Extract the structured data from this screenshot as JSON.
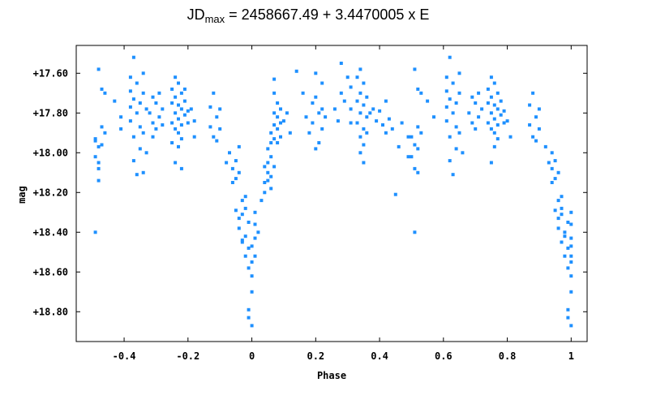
{
  "chart_data": {
    "type": "scatter",
    "title": {
      "prefix": "JD",
      "subscript": "max",
      "suffix": " = 2458667.49 + 3.4470005 x E"
    },
    "xlabel": "Phase",
    "ylabel": "mag",
    "xlim": [
      -0.55,
      1.05
    ],
    "ylim": [
      18.95,
      17.46
    ],
    "y_inverted": true,
    "x_ticks": [
      -0.4,
      -0.2,
      0,
      0.2,
      0.4,
      0.6,
      0.8,
      1
    ],
    "x_tick_labels": [
      "-0.4",
      "-0.2",
      "0",
      "0.2",
      "0.4",
      "0.6",
      "0.8",
      "1"
    ],
    "y_ticks": [
      17.6,
      17.8,
      18.0,
      18.2,
      18.4,
      18.6,
      18.8
    ],
    "y_tick_labels": [
      "+17.60",
      "+17.80",
      "+18.00",
      "+18.20",
      "+18.40",
      "+18.60",
      "+18.80"
    ],
    "grid": false,
    "marker_color": "#1e90ff",
    "series": [
      {
        "points": [
          [
            -0.49,
            17.93
          ],
          [
            -0.49,
            18.02
          ],
          [
            -0.48,
            17.97
          ],
          [
            -0.48,
            18.08
          ],
          [
            -0.47,
            17.87
          ],
          [
            -0.47,
            17.96
          ],
          [
            -0.47,
            17.68
          ],
          [
            -0.48,
            17.58
          ],
          [
            -0.49,
            18.4
          ],
          [
            -0.48,
            18.14
          ],
          [
            -0.46,
            17.9
          ],
          [
            -0.46,
            17.7
          ],
          [
            -0.48,
            18.05
          ],
          [
            -0.49,
            17.94
          ],
          [
            -0.43,
            17.74
          ],
          [
            -0.41,
            17.82
          ],
          [
            -0.41,
            17.88
          ],
          [
            -0.38,
            17.69
          ],
          [
            -0.38,
            17.77
          ],
          [
            -0.38,
            17.84
          ],
          [
            -0.38,
            17.62
          ],
          [
            -0.37,
            17.52
          ],
          [
            -0.37,
            17.73
          ],
          [
            -0.37,
            17.92
          ],
          [
            -0.37,
            18.04
          ],
          [
            -0.36,
            18.11
          ],
          [
            -0.36,
            17.8
          ],
          [
            -0.36,
            17.65
          ],
          [
            -0.35,
            17.75
          ],
          [
            -0.35,
            17.87
          ],
          [
            -0.35,
            17.98
          ],
          [
            -0.34,
            17.6
          ],
          [
            -0.34,
            17.7
          ],
          [
            -0.34,
            17.9
          ],
          [
            -0.34,
            18.1
          ],
          [
            -0.33,
            18.0
          ],
          [
            -0.33,
            17.78
          ],
          [
            -0.32,
            17.8
          ],
          [
            -0.31,
            17.72
          ],
          [
            -0.31,
            17.85
          ],
          [
            -0.3,
            17.75
          ],
          [
            -0.3,
            17.88
          ],
          [
            -0.29,
            17.82
          ],
          [
            -0.29,
            17.7
          ],
          [
            -0.28,
            17.78
          ],
          [
            -0.28,
            17.86
          ],
          [
            -0.31,
            17.92
          ],
          [
            -0.25,
            17.68
          ],
          [
            -0.25,
            17.75
          ],
          [
            -0.25,
            17.85
          ],
          [
            -0.25,
            17.95
          ],
          [
            -0.24,
            17.62
          ],
          [
            -0.24,
            17.72
          ],
          [
            -0.24,
            17.8
          ],
          [
            -0.24,
            17.88
          ],
          [
            -0.24,
            18.05
          ],
          [
            -0.23,
            17.65
          ],
          [
            -0.23,
            17.76
          ],
          [
            -0.23,
            17.83
          ],
          [
            -0.23,
            17.9
          ],
          [
            -0.23,
            17.97
          ],
          [
            -0.22,
            17.7
          ],
          [
            -0.22,
            17.78
          ],
          [
            -0.22,
            17.86
          ],
          [
            -0.22,
            17.93
          ],
          [
            -0.22,
            18.08
          ],
          [
            -0.21,
            17.74
          ],
          [
            -0.21,
            17.81
          ],
          [
            -0.21,
            17.68
          ],
          [
            -0.2,
            17.79
          ],
          [
            -0.2,
            17.85
          ],
          [
            -0.19,
            17.78
          ],
          [
            -0.18,
            17.84
          ],
          [
            -0.18,
            17.92
          ],
          [
            -0.13,
            17.77
          ],
          [
            -0.13,
            17.87
          ],
          [
            -0.12,
            17.7
          ],
          [
            -0.12,
            17.92
          ],
          [
            -0.11,
            17.82
          ],
          [
            -0.1,
            17.88
          ],
          [
            -0.1,
            17.78
          ],
          [
            -0.11,
            17.94
          ],
          [
            -0.08,
            18.05
          ],
          [
            -0.07,
            18.0
          ],
          [
            -0.06,
            18.08
          ],
          [
            -0.05,
            18.04
          ],
          [
            -0.04,
            17.97
          ],
          [
            -0.06,
            18.15
          ],
          [
            -0.05,
            18.13
          ],
          [
            -0.04,
            18.1
          ],
          [
            -0.03,
            18.24
          ],
          [
            -0.03,
            18.31
          ],
          [
            -0.02,
            18.28
          ],
          [
            -0.02,
            18.22
          ],
          [
            -0.04,
            18.38
          ],
          [
            -0.03,
            18.45
          ],
          [
            -0.02,
            18.42
          ],
          [
            -0.02,
            18.52
          ],
          [
            -0.01,
            18.35
          ],
          [
            -0.01,
            18.48
          ],
          [
            0.0,
            18.55
          ],
          [
            0.0,
            18.62
          ],
          [
            0.0,
            18.7
          ],
          [
            0.0,
            18.47
          ],
          [
            -0.01,
            18.58
          ],
          [
            0.01,
            18.36
          ],
          [
            0.01,
            18.43
          ],
          [
            0.01,
            18.3
          ],
          [
            0.01,
            18.52
          ],
          [
            0.02,
            18.4
          ],
          [
            -0.01,
            18.79
          ],
          [
            0.0,
            18.87
          ],
          [
            -0.01,
            18.83
          ],
          [
            -0.03,
            18.44
          ],
          [
            -0.05,
            18.29
          ],
          [
            -0.04,
            18.33
          ],
          [
            0.03,
            18.24
          ],
          [
            0.04,
            18.2
          ],
          [
            0.04,
            18.15
          ],
          [
            0.05,
            18.1
          ],
          [
            0.05,
            18.05
          ],
          [
            0.05,
            17.98
          ],
          [
            0.06,
            18.12
          ],
          [
            0.06,
            18.02
          ],
          [
            0.06,
            17.95
          ],
          [
            0.06,
            17.9
          ],
          [
            0.07,
            18.07
          ],
          [
            0.07,
            17.93
          ],
          [
            0.07,
            17.86
          ],
          [
            0.07,
            17.8
          ],
          [
            0.08,
            17.95
          ],
          [
            0.08,
            17.88
          ],
          [
            0.08,
            17.82
          ],
          [
            0.08,
            17.75
          ],
          [
            0.09,
            17.85
          ],
          [
            0.09,
            17.78
          ],
          [
            0.09,
            17.92
          ],
          [
            0.06,
            18.18
          ],
          [
            0.05,
            18.14
          ],
          [
            0.04,
            18.07
          ],
          [
            0.07,
            17.7
          ],
          [
            0.07,
            17.63
          ],
          [
            0.1,
            17.84
          ],
          [
            0.11,
            17.8
          ],
          [
            0.12,
            17.9
          ],
          [
            0.14,
            17.59
          ],
          [
            0.16,
            17.7
          ],
          [
            0.17,
            17.82
          ],
          [
            0.18,
            17.9
          ],
          [
            0.19,
            17.75
          ],
          [
            0.19,
            17.85
          ],
          [
            0.2,
            17.6
          ],
          [
            0.2,
            17.72
          ],
          [
            0.21,
            17.8
          ],
          [
            0.21,
            17.95
          ],
          [
            0.22,
            17.65
          ],
          [
            0.22,
            17.78
          ],
          [
            0.22,
            17.88
          ],
          [
            0.23,
            17.82
          ],
          [
            0.2,
            17.98
          ],
          [
            0.26,
            17.78
          ],
          [
            0.27,
            17.84
          ],
          [
            0.28,
            17.55
          ],
          [
            0.28,
            17.7
          ],
          [
            0.29,
            17.74
          ],
          [
            0.3,
            17.62
          ],
          [
            0.31,
            17.85
          ],
          [
            0.31,
            17.78
          ],
          [
            0.31,
            17.67
          ],
          [
            0.33,
            17.62
          ],
          [
            0.33,
            17.74
          ],
          [
            0.33,
            17.85
          ],
          [
            0.34,
            17.58
          ],
          [
            0.34,
            17.7
          ],
          [
            0.34,
            17.8
          ],
          [
            0.34,
            17.92
          ],
          [
            0.34,
            18.0
          ],
          [
            0.35,
            17.65
          ],
          [
            0.35,
            17.76
          ],
          [
            0.35,
            17.88
          ],
          [
            0.35,
            17.96
          ],
          [
            0.35,
            18.05
          ],
          [
            0.36,
            17.72
          ],
          [
            0.36,
            17.82
          ],
          [
            0.36,
            17.9
          ],
          [
            0.37,
            17.8
          ],
          [
            0.38,
            17.78
          ],
          [
            0.39,
            17.84
          ],
          [
            0.4,
            17.79
          ],
          [
            0.41,
            17.86
          ],
          [
            0.42,
            17.74
          ],
          [
            0.42,
            17.9
          ],
          [
            0.43,
            17.83
          ],
          [
            0.44,
            17.88
          ],
          [
            0.45,
            18.21
          ],
          [
            0.46,
            17.97
          ],
          [
            0.47,
            17.85
          ],
          [
            0.49,
            18.02
          ],
          [
            0.49,
            17.92
          ],
          [
            0.5,
            17.92
          ],
          [
            0.5,
            18.02
          ],
          [
            0.51,
            17.96
          ],
          [
            0.51,
            18.08
          ],
          [
            0.52,
            17.87
          ],
          [
            0.52,
            17.68
          ],
          [
            0.51,
            17.58
          ],
          [
            0.51,
            18.4
          ],
          [
            0.52,
            17.98
          ],
          [
            0.53,
            17.9
          ],
          [
            0.53,
            17.7
          ],
          [
            0.52,
            18.1
          ],
          [
            0.55,
            17.74
          ],
          [
            0.57,
            17.82
          ],
          [
            0.61,
            17.69
          ],
          [
            0.61,
            17.77
          ],
          [
            0.61,
            17.84
          ],
          [
            0.61,
            17.62
          ],
          [
            0.62,
            17.52
          ],
          [
            0.62,
            17.73
          ],
          [
            0.62,
            17.92
          ],
          [
            0.62,
            18.04
          ],
          [
            0.63,
            18.11
          ],
          [
            0.63,
            17.8
          ],
          [
            0.63,
            17.65
          ],
          [
            0.64,
            17.75
          ],
          [
            0.64,
            17.87
          ],
          [
            0.64,
            17.98
          ],
          [
            0.65,
            17.6
          ],
          [
            0.65,
            17.7
          ],
          [
            0.65,
            17.9
          ],
          [
            0.66,
            18.0
          ],
          [
            0.68,
            17.8
          ],
          [
            0.69,
            17.72
          ],
          [
            0.69,
            17.85
          ],
          [
            0.7,
            17.75
          ],
          [
            0.7,
            17.88
          ],
          [
            0.71,
            17.82
          ],
          [
            0.71,
            17.7
          ],
          [
            0.72,
            17.78
          ],
          [
            0.74,
            17.68
          ],
          [
            0.74,
            17.75
          ],
          [
            0.74,
            17.85
          ],
          [
            0.75,
            17.62
          ],
          [
            0.75,
            17.72
          ],
          [
            0.75,
            17.8
          ],
          [
            0.75,
            17.88
          ],
          [
            0.75,
            18.05
          ],
          [
            0.76,
            17.65
          ],
          [
            0.76,
            17.76
          ],
          [
            0.76,
            17.83
          ],
          [
            0.76,
            17.9
          ],
          [
            0.76,
            17.97
          ],
          [
            0.77,
            17.7
          ],
          [
            0.77,
            17.78
          ],
          [
            0.77,
            17.86
          ],
          [
            0.77,
            17.93
          ],
          [
            0.78,
            17.74
          ],
          [
            0.78,
            17.81
          ],
          [
            0.79,
            17.79
          ],
          [
            0.79,
            17.85
          ],
          [
            0.8,
            17.84
          ],
          [
            0.81,
            17.92
          ],
          [
            0.87,
            17.76
          ],
          [
            0.87,
            17.86
          ],
          [
            0.88,
            17.7
          ],
          [
            0.88,
            17.92
          ],
          [
            0.89,
            17.82
          ],
          [
            0.9,
            17.88
          ],
          [
            0.9,
            17.78
          ],
          [
            0.89,
            17.94
          ],
          [
            0.92,
            17.97
          ],
          [
            0.93,
            18.05
          ],
          [
            0.94,
            18.0
          ],
          [
            0.94,
            18.08
          ],
          [
            0.95,
            18.04
          ],
          [
            0.94,
            18.15
          ],
          [
            0.95,
            18.13
          ],
          [
            0.96,
            18.1
          ],
          [
            0.96,
            18.24
          ],
          [
            0.97,
            18.31
          ],
          [
            0.97,
            18.28
          ],
          [
            0.97,
            18.22
          ],
          [
            0.96,
            18.38
          ],
          [
            0.97,
            18.45
          ],
          [
            0.98,
            18.42
          ],
          [
            0.98,
            18.52
          ],
          [
            0.99,
            18.35
          ],
          [
            0.99,
            18.48
          ],
          [
            1.0,
            18.55
          ],
          [
            1.0,
            18.62
          ],
          [
            1.0,
            18.7
          ],
          [
            1.0,
            18.47
          ],
          [
            0.99,
            18.58
          ],
          [
            1.0,
            18.36
          ],
          [
            1.0,
            18.43
          ],
          [
            1.0,
            18.3
          ],
          [
            1.0,
            18.52
          ],
          [
            0.99,
            18.79
          ],
          [
            1.0,
            18.87
          ],
          [
            0.99,
            18.83
          ],
          [
            0.95,
            18.29
          ],
          [
            0.96,
            18.33
          ],
          [
            0.98,
            18.4
          ]
        ]
      }
    ]
  }
}
